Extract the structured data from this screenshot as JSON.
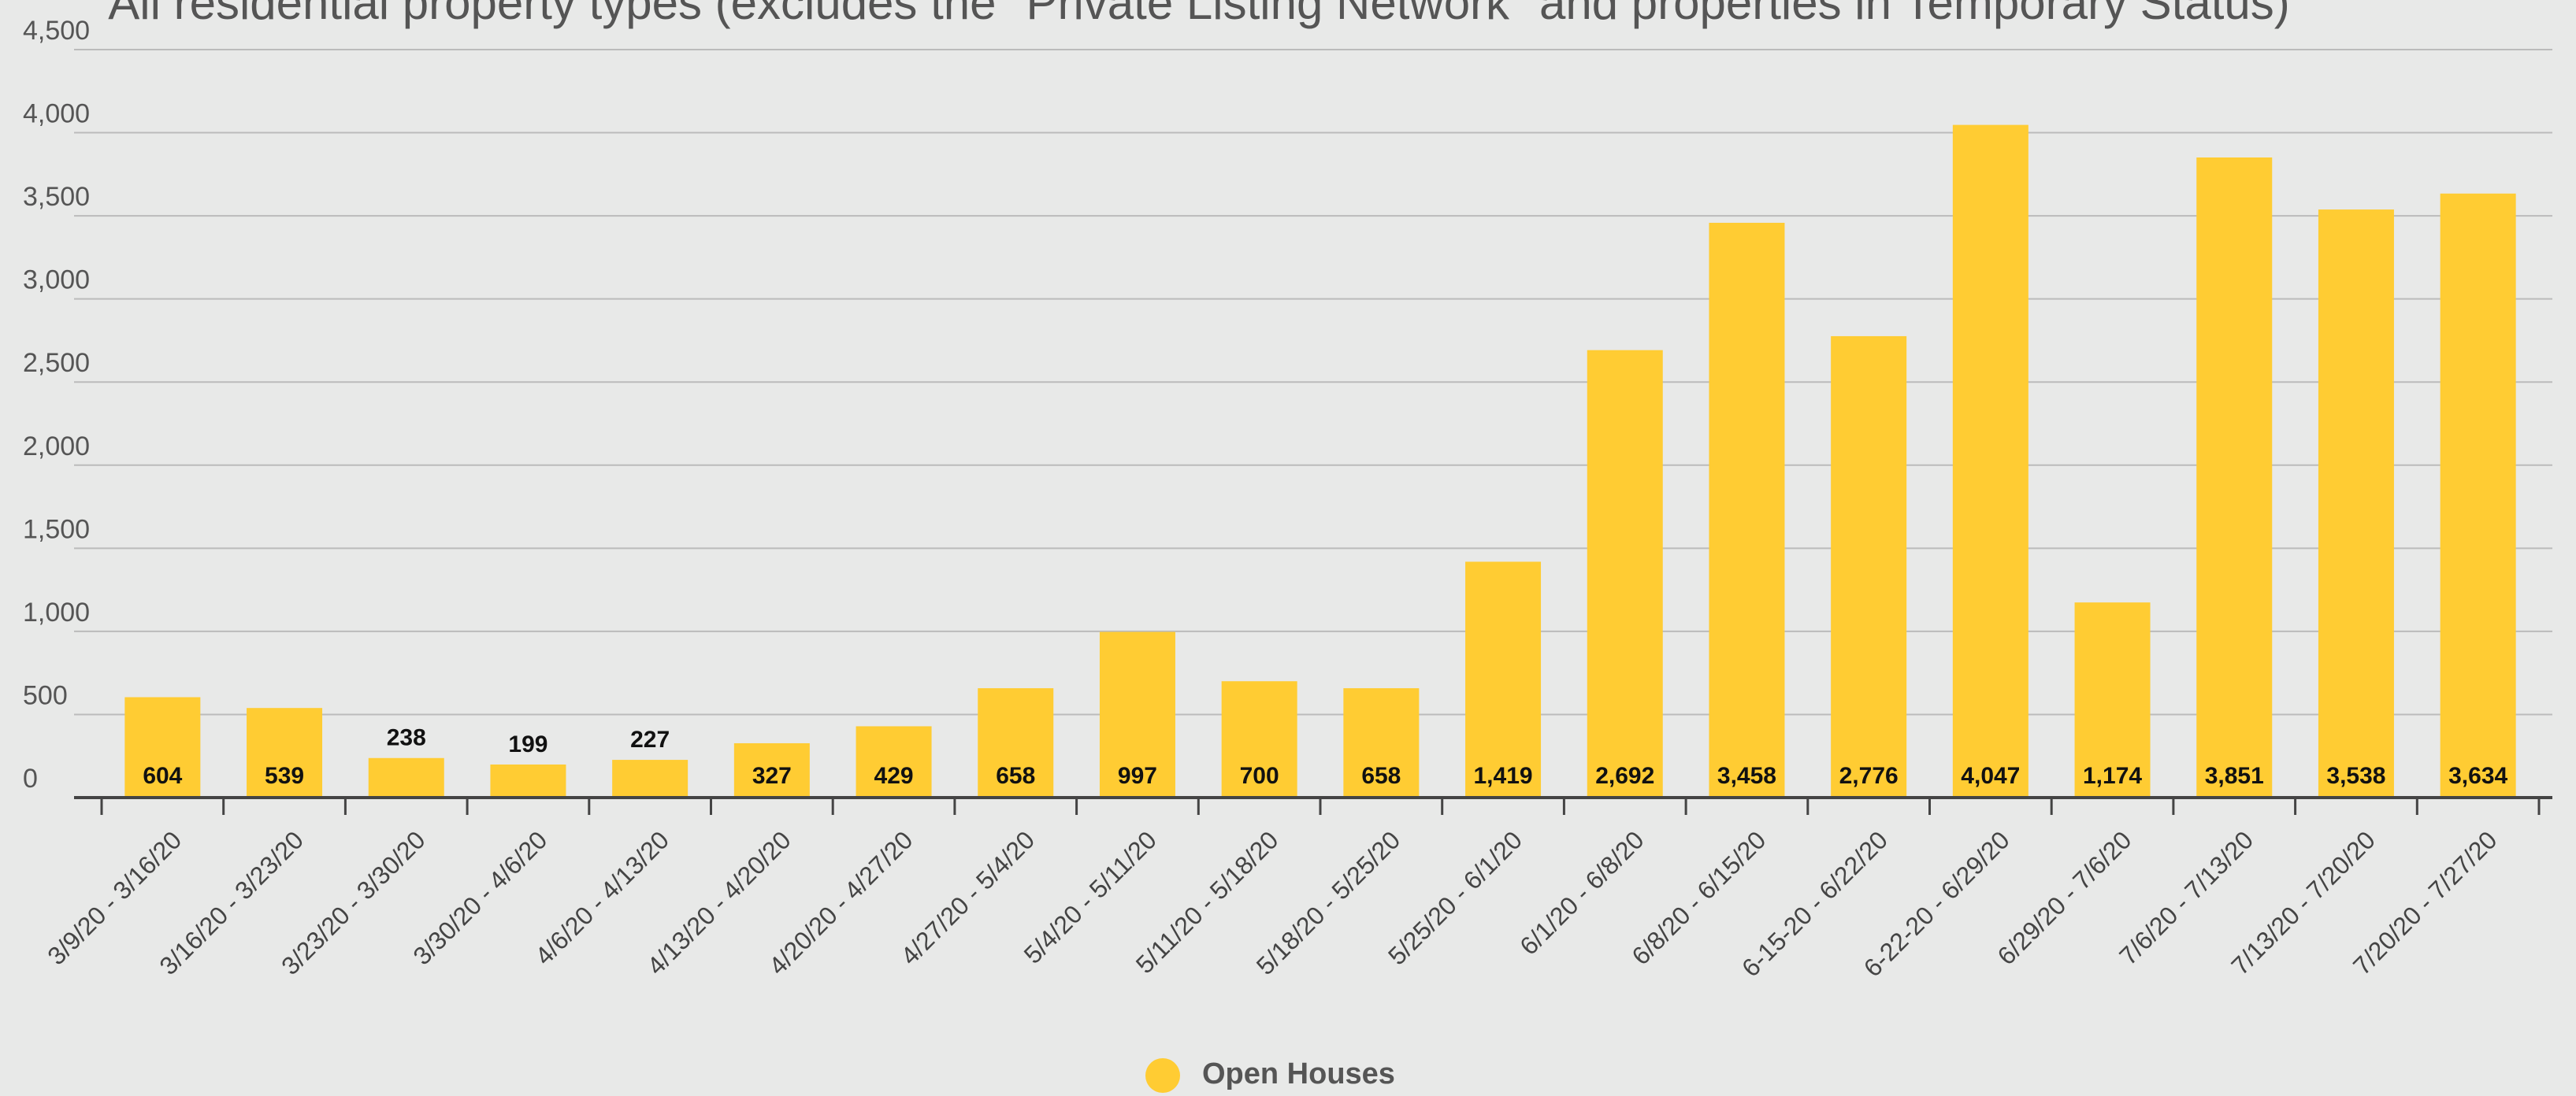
{
  "chart_data": {
    "type": "bar",
    "title": "All residential property types (excludes the \"Private Listing Network\" and properties in Temporary Status)",
    "categories": [
      "3/9/20 - 3/16/20",
      "3/16/20 - 3/23/20",
      "3/23/20 - 3/30/20",
      "3/30/20 - 4/6/20",
      "4/6/20 - 4/13/20",
      "4/13/20 - 4/20/20",
      "4/20/20 - 4/27/20",
      "4/27/20 - 5/4/20",
      "5/4/20 - 5/11/20",
      "5/11/20 - 5/18/20",
      "5/18/20 - 5/25/20",
      "5/25/20 - 6/1/20",
      "6/1/20 - 6/8/20",
      "6/8/20 - 6/15/20",
      "6-15-20 - 6/22/20",
      "6-22-20 - 6/29/20",
      "6/29/20 - 7/6/20",
      "7/6/20 - 7/13/20",
      "7/13/20 - 7/20/20",
      "7/20/20 - 7/27/20"
    ],
    "series": [
      {
        "name": "Open Houses",
        "color": "#ffcc33",
        "values": [
          604,
          539,
          238,
          199,
          227,
          327,
          429,
          658,
          997,
          700,
          658,
          1419,
          2692,
          3458,
          2776,
          4047,
          1174,
          3851,
          3538,
          3634
        ],
        "value_labels": [
          "604",
          "539",
          "238",
          "199",
          "227",
          "327",
          "429",
          "658",
          "997",
          "700",
          "658",
          "1,419",
          "2,692",
          "3,458",
          "2,776",
          "4,047",
          "1,174",
          "3,851",
          "3,538",
          "3,634"
        ]
      }
    ],
    "ylim": [
      0,
      4500
    ],
    "yticks": [
      0,
      500,
      {
        "value": 1000,
        "label": "1,000"
      },
      {
        "value": 1500,
        "label": "1,500"
      },
      {
        "value": 2000,
        "label": "2,000"
      },
      {
        "value": 2500,
        "label": "2,500"
      },
      {
        "value": 3000,
        "label": "3,000"
      },
      {
        "value": 3500,
        "label": "3,500"
      },
      {
        "value": 4000,
        "label": "4,000"
      },
      {
        "value": 4500,
        "label": "4,500"
      }
    ],
    "grid": true,
    "legend": "bottom"
  }
}
